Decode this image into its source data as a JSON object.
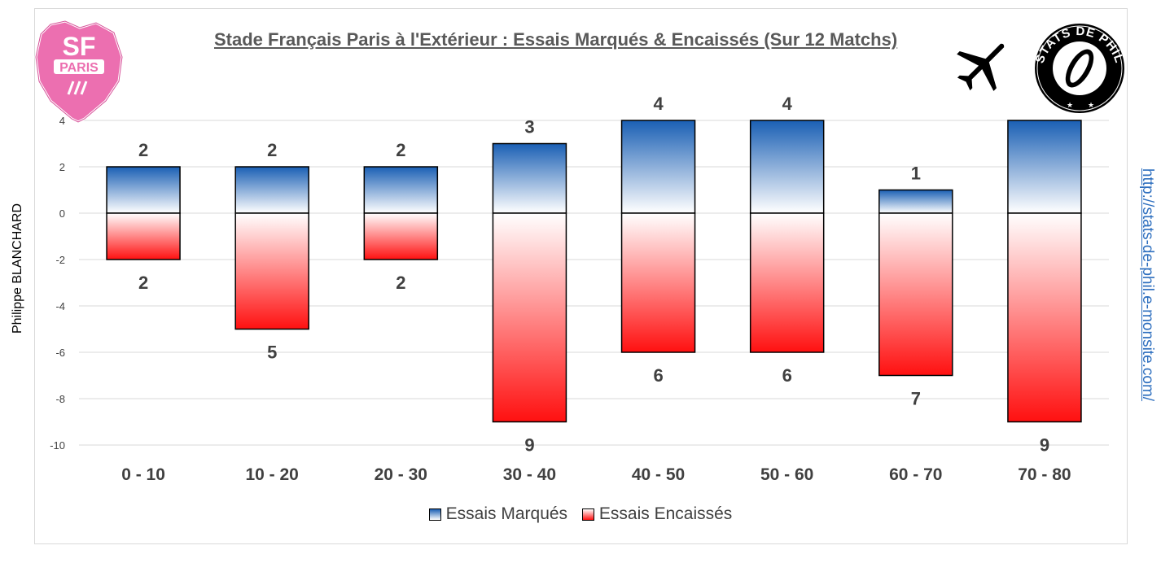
{
  "chart_data": {
    "type": "bar",
    "title": "Stade Français Paris à l'Extérieur : Essais Marqués & Encaissés (Sur 12 Matchs)",
    "categories": [
      "0 - 10",
      "10 - 20",
      "20 - 30",
      "30 - 40",
      "40 - 50",
      "50 - 60",
      "60 - 70",
      "70 - 80"
    ],
    "series": [
      {
        "name": "Essais Marqués",
        "values": [
          2,
          2,
          2,
          3,
          4,
          4,
          1,
          4
        ],
        "color": "#1a5fb4"
      },
      {
        "name": "Essais Encaissés",
        "values": [
          -2,
          -5,
          -2,
          -9,
          -6,
          -6,
          -7,
          -9
        ],
        "color": "#ff1010"
      }
    ],
    "data_labels_marques": [
      "2",
      "2",
      "2",
      "3",
      "4",
      "4",
      "1",
      ""
    ],
    "data_labels_encaisses": [
      "2",
      "5",
      "2",
      "9",
      "6",
      "6",
      "7",
      "9"
    ],
    "ylim": [
      -10,
      4
    ],
    "yticks": [
      4,
      2,
      0,
      -2,
      -4,
      -6,
      -8,
      -10
    ],
    "grid": true,
    "legend": "bottom",
    "xlabel": "",
    "ylabel": ""
  },
  "logos": {
    "club_logo": {
      "line1": "SF",
      "line2": "PARIS"
    },
    "stats_logo": {
      "text": "STATS DE PHIL"
    }
  },
  "icons": {
    "away": "airplane-icon"
  },
  "author": "Philippe BLANCHARD",
  "website": "http://stats-de-phil.e-monsite.com/"
}
